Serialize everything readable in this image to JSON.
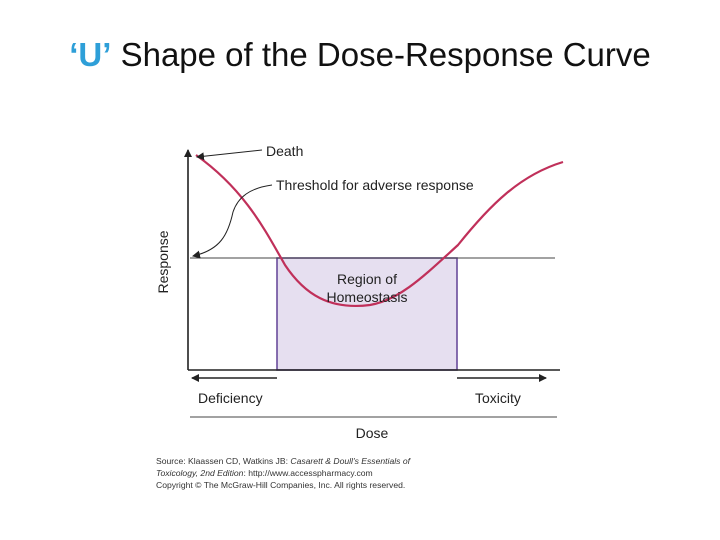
{
  "title": {
    "accent": "‘U’",
    "rest": "Shape of the Dose-Response Curve"
  },
  "diagram": {
    "y_axis_label": "Response",
    "x_axis_label": "Dose",
    "death_label": "Death",
    "threshold_label": "Threshold for adverse response",
    "region_label_line1": "Region of",
    "region_label_line2": "Homeostasis",
    "deficiency_label": "Deficiency",
    "toxicity_label": "Toxicity"
  },
  "credit": {
    "line1_prefix": "Source: Klaassen CD, Watkins JB: ",
    "line1_italic": "Casarett & Doull's Essentials of",
    "line2_italic": "Toxicology, 2nd Edition",
    "line2_rest": ": http://www.accesspharmacy.com",
    "line3": "Copyright © The McGraw-Hill Companies, Inc. All rights reserved."
  },
  "colors": {
    "accent": "#2e9fd8",
    "curve": "#c0305a",
    "region_fill": "#e6dff0",
    "region_stroke": "#6a4c9c"
  }
}
